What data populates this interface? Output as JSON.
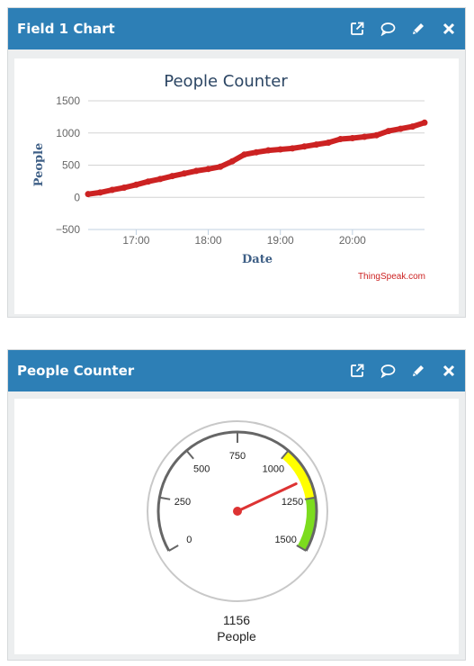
{
  "widgets": [
    {
      "title": "Field 1 Chart",
      "tools": [
        "external-link-icon",
        "comment-icon",
        "pencil-icon",
        "close-icon"
      ]
    },
    {
      "title": "People Counter",
      "tools": [
        "external-link-icon",
        "comment-icon",
        "pencil-icon",
        "close-icon"
      ]
    }
  ],
  "chart_data": {
    "type": "line",
    "title": "People Counter",
    "xlabel": "Date",
    "ylabel": "People",
    "credit": "ThingSpeak.com",
    "ylim": [
      -500,
      1500
    ],
    "yticks": [
      -500,
      0,
      500,
      1000,
      1500
    ],
    "ytick_labels": [
      "−500",
      "0",
      "500",
      "1000",
      "1500"
    ],
    "xlim": [
      "16:20",
      "21:00"
    ],
    "xticks": [
      "17:00",
      "18:00",
      "19:00",
      "20:00"
    ],
    "grid": true,
    "colors": {
      "line": "#cc2222",
      "title": "#2b4563",
      "axis_label": "#3e5f86",
      "credit": "#cc2222"
    },
    "series": [
      {
        "x": [
          "16:20",
          "16:30",
          "16:40",
          "16:50",
          "17:00",
          "17:10",
          "17:20",
          "17:30",
          "17:40",
          "17:50",
          "18:00",
          "18:10",
          "18:20",
          "18:30",
          "18:40",
          "18:50",
          "19:00",
          "19:10",
          "19:20",
          "19:30",
          "19:40",
          "19:50",
          "20:00",
          "20:10",
          "20:20",
          "20:30",
          "20:40",
          "20:50",
          "21:00"
        ],
        "values": [
          50,
          75,
          115,
          150,
          195,
          245,
          285,
          330,
          370,
          410,
          440,
          475,
          560,
          665,
          700,
          730,
          745,
          760,
          790,
          820,
          850,
          905,
          920,
          940,
          965,
          1030,
          1065,
          1100,
          1160
        ]
      }
    ]
  },
  "gauge": {
    "value": "1156",
    "units": "People",
    "needle_value": 1156,
    "min": 0,
    "max": 1500,
    "tick_labels": [
      "0",
      "250",
      "500",
      "750",
      "1000",
      "1250",
      "1500"
    ],
    "bands": [
      {
        "from": 1000,
        "to": 1250,
        "color": "#ffff00"
      },
      {
        "from": 1250,
        "to": 1500,
        "color": "#7cdc1e"
      }
    ],
    "needle_color": "#dd3333"
  }
}
